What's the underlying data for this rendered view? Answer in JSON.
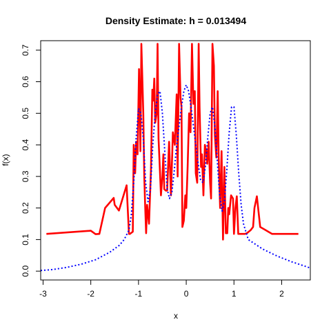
{
  "chart_data": {
    "type": "line",
    "title": "Density Estimate: h = 0.013494",
    "xlabel": "x",
    "ylabel": "f(x)",
    "xlim": [
      -3.05,
      2.6
    ],
    "ylim": [
      -0.028,
      0.73
    ],
    "xticks": [
      -3,
      -2,
      -1,
      0,
      1,
      2
    ],
    "yticks": [
      0.0,
      0.1,
      0.2,
      0.3,
      0.4,
      0.5,
      0.6,
      0.7
    ],
    "xtick_labels": [
      "-3",
      "-2",
      "-1",
      "0",
      "1",
      "2"
    ],
    "ytick_labels": [
      "0.0",
      "0.1",
      "0.2",
      "0.3",
      "0.4",
      "0.5",
      "0.6",
      "0.7"
    ],
    "grid": false,
    "legend": "none",
    "series": [
      {
        "style": "solid",
        "color": "#ff0000",
        "x": [
          -2.93,
          -2.0,
          -1.9,
          -1.82,
          -1.7,
          -1.52,
          -1.5,
          -1.41,
          -1.25,
          -1.2,
          -1.18,
          -1.12,
          -1.1,
          -1.07,
          -1.05,
          -1.02,
          -0.99,
          -0.96,
          -0.94,
          -0.9,
          -0.88,
          -0.86,
          -0.84,
          -0.82,
          -0.78,
          -0.74,
          -0.71,
          -0.69,
          -0.67,
          -0.65,
          -0.62,
          -0.6,
          -0.58,
          -0.56,
          -0.53,
          -0.5,
          -0.48,
          -0.46,
          -0.43,
          -0.4,
          -0.36,
          -0.32,
          -0.28,
          -0.24,
          -0.2,
          -0.18,
          -0.15,
          -0.12,
          -0.1,
          -0.08,
          -0.05,
          -0.02,
          0.0,
          0.03,
          0.06,
          0.09,
          0.12,
          0.15,
          0.18,
          0.2,
          0.23,
          0.26,
          0.28,
          0.31,
          0.33,
          0.36,
          0.39,
          0.42,
          0.44,
          0.47,
          0.5,
          0.52,
          0.55,
          0.58,
          0.6,
          0.63,
          0.66,
          0.68,
          0.71,
          0.74,
          0.77,
          0.8,
          0.83,
          0.86,
          0.88,
          0.9,
          0.94,
          0.98,
          1.0,
          1.03,
          1.06,
          1.09,
          1.12,
          1.16,
          1.2,
          1.23,
          1.27,
          1.31,
          1.35,
          1.4,
          1.43,
          1.48,
          1.55,
          1.8,
          2.35
        ],
        "y": [
          0.118,
          0.128,
          0.117,
          0.118,
          0.2,
          0.232,
          0.21,
          0.192,
          0.272,
          0.118,
          0.118,
          0.125,
          0.4,
          0.31,
          0.41,
          0.37,
          0.64,
          0.38,
          0.72,
          0.5,
          0.3,
          0.2,
          0.12,
          0.21,
          0.15,
          0.32,
          0.575,
          0.54,
          0.61,
          0.47,
          0.5,
          0.72,
          0.42,
          0.35,
          0.24,
          0.3,
          0.37,
          0.26,
          0.255,
          0.255,
          0.41,
          0.24,
          0.44,
          0.4,
          0.56,
          0.3,
          0.72,
          0.55,
          0.52,
          0.14,
          0.16,
          0.24,
          0.2,
          0.33,
          0.5,
          0.44,
          0.72,
          0.53,
          0.57,
          0.31,
          0.28,
          0.72,
          0.52,
          0.33,
          0.37,
          0.24,
          0.4,
          0.38,
          0.34,
          0.41,
          0.28,
          0.23,
          0.72,
          0.65,
          0.43,
          0.36,
          0.57,
          0.36,
          0.2,
          0.38,
          0.1,
          0.33,
          0.12,
          0.12,
          0.2,
          0.18,
          0.24,
          0.23,
          0.118,
          0.2,
          0.237,
          0.118,
          0.118,
          0.118,
          0.118,
          0.118,
          0.12,
          0.125,
          0.13,
          0.14,
          0.2,
          0.237,
          0.14,
          0.118,
          0.118
        ]
      },
      {
        "style": "dotted",
        "color": "#0000ff",
        "x": [
          -3.05,
          -2.8,
          -2.5,
          -2.2,
          -1.9,
          -1.6,
          -1.4,
          -1.3,
          -1.2,
          -1.15,
          -1.1,
          -1.05,
          -1.0,
          -0.95,
          -0.9,
          -0.85,
          -0.8,
          -0.75,
          -0.7,
          -0.65,
          -0.6,
          -0.55,
          -0.5,
          -0.45,
          -0.4,
          -0.35,
          -0.3,
          -0.25,
          -0.2,
          -0.15,
          -0.1,
          -0.05,
          0.0,
          0.05,
          0.1,
          0.15,
          0.2,
          0.25,
          0.3,
          0.35,
          0.4,
          0.45,
          0.5,
          0.55,
          0.6,
          0.65,
          0.7,
          0.75,
          0.8,
          0.85,
          0.9,
          0.95,
          1.0,
          1.05,
          1.1,
          1.15,
          1.2,
          1.3,
          1.4,
          1.6,
          1.9,
          2.2,
          2.6
        ],
        "y": [
          0.002,
          0.005,
          0.012,
          0.022,
          0.036,
          0.06,
          0.082,
          0.1,
          0.13,
          0.18,
          0.28,
          0.42,
          0.515,
          0.5,
          0.42,
          0.28,
          0.22,
          0.26,
          0.4,
          0.5,
          0.56,
          0.57,
          0.5,
          0.38,
          0.26,
          0.23,
          0.25,
          0.32,
          0.4,
          0.46,
          0.52,
          0.57,
          0.59,
          0.57,
          0.52,
          0.46,
          0.4,
          0.34,
          0.29,
          0.28,
          0.33,
          0.42,
          0.5,
          0.52,
          0.46,
          0.35,
          0.24,
          0.19,
          0.22,
          0.32,
          0.44,
          0.52,
          0.52,
          0.43,
          0.31,
          0.21,
          0.15,
          0.1,
          0.09,
          0.07,
          0.048,
          0.03,
          0.01
        ]
      }
    ]
  }
}
